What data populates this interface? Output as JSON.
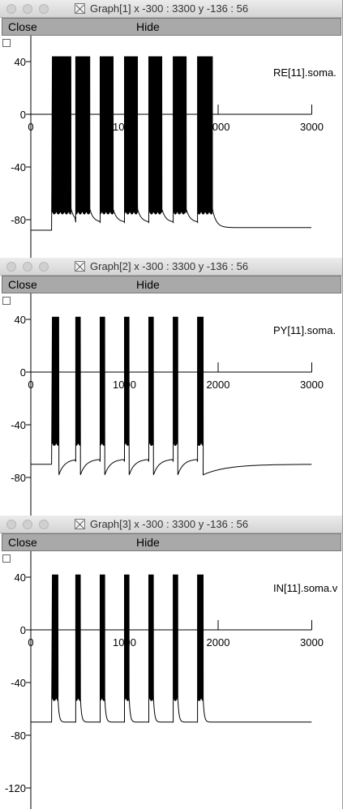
{
  "menu": {
    "close_label": "Close",
    "hide_label": "Hide"
  },
  "windows": [
    {
      "title": "Graph[1]  x -300 : 3300  y -136 : 56",
      "trace_label": "RE[11].soma.",
      "chart_data": {
        "type": "line",
        "title": "",
        "xlabel": "",
        "ylabel": "",
        "xlim": [
          -300,
          3300
        ],
        "ylim": [
          -136,
          56
        ],
        "x_ticks": [
          0,
          1000,
          2000,
          3000
        ],
        "y_ticks": [
          -80,
          -40,
          0,
          40
        ],
        "x_tick_labels": [
          "0",
          "1000",
          "2000",
          "3000"
        ],
        "y_tick_labels": [
          "-80",
          "-40",
          "0",
          "40"
        ],
        "series": [
          {
            "name": "RE[11].soma.",
            "rest": -88,
            "t_start": 0,
            "t_end": 3000,
            "bursts": [
              [
                230,
                430
              ],
              [
                480,
                630
              ],
              [
                740,
                880
              ],
              [
                1000,
                1140
              ],
              [
                1260,
                1400
              ],
              [
                1520,
                1660
              ],
              [
                1780,
                1940
              ]
            ],
            "spike_peak": 44,
            "trough": -72,
            "recovery_tau": 40,
            "end_v": -86
          }
        ]
      }
    },
    {
      "title": "Graph[2]  x -300 : 3300  y -136 : 56",
      "trace_label": "PY[11].soma.",
      "chart_data": {
        "type": "line",
        "title": "",
        "xlabel": "",
        "ylabel": "",
        "xlim": [
          -300,
          3300
        ],
        "ylim": [
          -136,
          56
        ],
        "x_ticks": [
          0,
          1000,
          2000,
          3000
        ],
        "y_ticks": [
          -80,
          -40,
          0,
          40
        ],
        "x_tick_labels": [
          "0",
          "1000",
          "2000",
          "3000"
        ],
        "y_tick_labels": [
          "-80",
          "-40",
          "0",
          "40"
        ],
        "series": [
          {
            "name": "PY[11].soma.",
            "rest": -70,
            "t_start": 0,
            "t_end": 3000,
            "bursts": [
              [
                230,
                300
              ],
              [
                480,
                530
              ],
              [
                740,
                790
              ],
              [
                1000,
                1050
              ],
              [
                1260,
                1310
              ],
              [
                1520,
                1570
              ],
              [
                1780,
                1840
              ]
            ],
            "spike_peak": 42,
            "trough": -52,
            "inter_burst_min": -78,
            "end_v": -70
          }
        ]
      }
    },
    {
      "title": "Graph[3]  x -300 : 3300  y -136 : 56",
      "trace_label": "IN[11].soma.v",
      "chart_data": {
        "type": "line",
        "title": "",
        "xlabel": "",
        "ylabel": "",
        "xlim": [
          -300,
          3300
        ],
        "ylim": [
          -136,
          56
        ],
        "x_ticks": [
          0,
          1000,
          2000,
          3000
        ],
        "y_ticks": [
          -120,
          -80,
          -40,
          0,
          40
        ],
        "x_tick_labels": [
          "0",
          "1000",
          "2000",
          "3000"
        ],
        "y_tick_labels": [
          "-120",
          "-80",
          "-40",
          "0",
          "40"
        ],
        "series": [
          {
            "name": "IN[11].soma.v",
            "rest": -70,
            "t_start": 0,
            "t_end": 3000,
            "bursts": [
              [
                230,
                290
              ],
              [
                480,
                530
              ],
              [
                740,
                790
              ],
              [
                1000,
                1050
              ],
              [
                1260,
                1310
              ],
              [
                1520,
                1570
              ],
              [
                1780,
                1840
              ]
            ],
            "spike_peak": 42,
            "trough": -50,
            "end_v": -70
          }
        ]
      }
    }
  ]
}
